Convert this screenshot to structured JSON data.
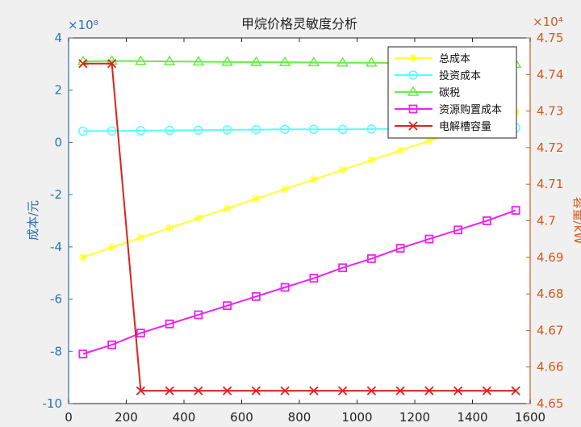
{
  "chart_data": {
    "type": "line",
    "title": "甲烷价格灵敏度分析",
    "xlabel": "",
    "ylabel_left": "成本/元",
    "ylabel_right": "容量/kW",
    "left_exponent": "×10⁸",
    "right_exponent": "×10⁴",
    "xlim": [
      0,
      1600
    ],
    "ylim_left": [
      -10,
      4
    ],
    "ylim_right": [
      4.65,
      4.75
    ],
    "x_ticks": [
      "0",
      "200",
      "400",
      "600",
      "800",
      "1000",
      "1200",
      "1400",
      "1600"
    ],
    "left_ticks": [
      "4",
      "2",
      "0",
      "-2",
      "-4",
      "-6",
      "-8",
      "-10"
    ],
    "right_ticks": [
      "4.75",
      "4.74",
      "4.73",
      "4.72",
      "4.71",
      "4.7",
      "4.69",
      "4.68",
      "4.67",
      "4.66",
      "4.65"
    ],
    "x": [
      50,
      150,
      250,
      350,
      450,
      550,
      650,
      750,
      850,
      950,
      1050,
      1150,
      1250,
      1350,
      1450,
      1550
    ],
    "legend_position": "top-right",
    "series": [
      {
        "name": "总成本",
        "axis": "left",
        "color": "#ffff33",
        "marker": "star",
        "values": [
          -4.4,
          -4.02,
          -3.65,
          -3.28,
          -2.9,
          -2.53,
          -2.16,
          -1.79,
          -1.42,
          -1.05,
          -0.68,
          -0.31,
          0.06,
          0.43,
          0.8,
          1.17
        ]
      },
      {
        "name": "投资成本",
        "axis": "left",
        "color": "#55ffff",
        "marker": "circle",
        "values": [
          0.43,
          0.44,
          0.45,
          0.46,
          0.47,
          0.48,
          0.49,
          0.5,
          0.5,
          0.5,
          0.51,
          0.52,
          0.53,
          0.54,
          0.55,
          0.56
        ]
      },
      {
        "name": "碳税",
        "axis": "left",
        "color": "#66ee44",
        "marker": "triangle",
        "values": [
          3.1,
          3.12,
          3.11,
          3.1,
          3.09,
          3.08,
          3.07,
          3.07,
          3.06,
          3.05,
          3.05,
          3.04,
          3.03,
          3.02,
          3.01,
          3.0
        ]
      },
      {
        "name": "资源购置成本",
        "axis": "left",
        "color": "#ee22ee",
        "marker": "square",
        "values": [
          -8.1,
          -7.75,
          -7.3,
          -6.95,
          -6.6,
          -6.25,
          -5.9,
          -5.55,
          -5.2,
          -4.8,
          -4.45,
          -4.05,
          -3.7,
          -3.35,
          -3.0,
          -2.6
        ]
      },
      {
        "name": "电解槽容量",
        "axis": "right",
        "color": "#e02020",
        "marker": "x",
        "values": [
          4.743,
          4.743,
          4.6535,
          4.6535,
          4.6535,
          4.6535,
          4.6535,
          4.6535,
          4.6535,
          4.6535,
          4.6535,
          4.6535,
          4.6535,
          4.6535,
          4.6535,
          4.6535
        ]
      }
    ]
  }
}
